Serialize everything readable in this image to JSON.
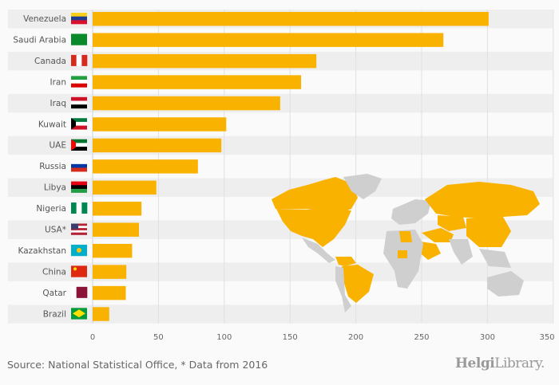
{
  "chart_data": {
    "type": "bar",
    "orientation": "horizontal",
    "categories": [
      "Venezuela",
      "Saudi Arabia",
      "Canada",
      "Iran",
      "Iraq",
      "Kuwait",
      "UAE",
      "Russia",
      "Libya",
      "Nigeria",
      "USA*",
      "Kazakhstan",
      "China",
      "Qatar",
      "Brazil"
    ],
    "values": [
      300.9,
      266.5,
      170.0,
      158.4,
      142.5,
      101.5,
      97.8,
      80.0,
      48.4,
      37.1,
      35.2,
      30.0,
      25.6,
      25.2,
      12.6
    ],
    "xlim": [
      0,
      350
    ],
    "xticks": [
      "0",
      "50",
      "100",
      "150",
      "200",
      "250",
      "300",
      "350"
    ],
    "grid": true,
    "bar_color": "#f9b200",
    "title": "",
    "xlabel": "",
    "ylabel": ""
  },
  "source": "Source: National Statistical Office, * Data from 2016",
  "logo": {
    "part1": "Helgi",
    "part2": "Library."
  }
}
